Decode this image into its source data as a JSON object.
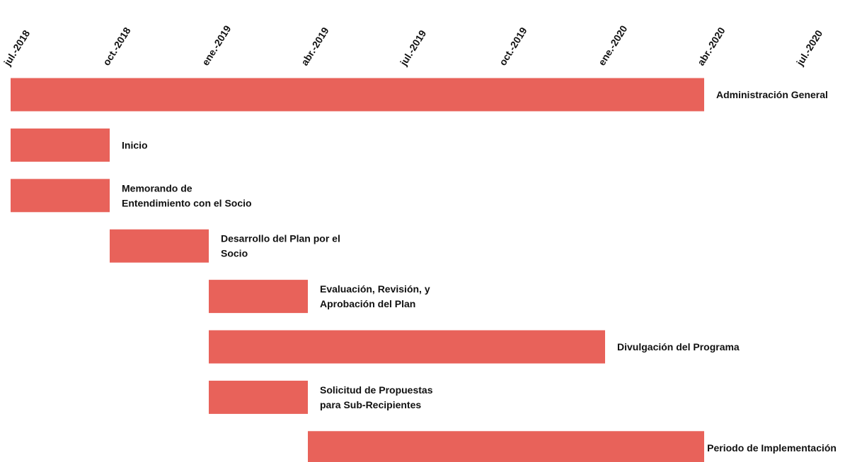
{
  "chart_data": {
    "type": "gantt",
    "categories": [
      "Administración General",
      "Inicio",
      "Memorando de\nEntendimiento con el Socio",
      "Desarrollo del Plan por el\nSocio",
      "Evaluación, Revisión, y\nAprobación del Plan",
      "Divulgación del Programa",
      "Solicitud de Propuestas\npara Sub-Recipientes",
      "Periodo de Implementación"
    ],
    "start": [
      "2018-07",
      "2018-07",
      "2018-07",
      "2018-10",
      "2019-01",
      "2019-01",
      "2019-01",
      "2019-04"
    ],
    "end": [
      "2020-04",
      "2018-10",
      "2018-10",
      "2019-01",
      "2019-04",
      "2020-01",
      "2019-04",
      "2020-04"
    ],
    "color": "#e8625a",
    "xlim": [
      "2018-07",
      "2020-07"
    ],
    "xticks": [
      {
        "value": "2018-07",
        "label": "jul.-2018"
      },
      {
        "value": "2018-10",
        "label": "oct.-2018"
      },
      {
        "value": "2019-01",
        "label": "ene.-2019"
      },
      {
        "value": "2019-04",
        "label": "abr.-2019"
      },
      {
        "value": "2019-07",
        "label": "jul.-2019"
      },
      {
        "value": "2019-10",
        "label": "oct.-2019"
      },
      {
        "value": "2020-01",
        "label": "ene.-2020"
      },
      {
        "value": "2020-04",
        "label": "abr.-2020"
      },
      {
        "value": "2020-07",
        "label": "jul.-2020"
      }
    ]
  }
}
